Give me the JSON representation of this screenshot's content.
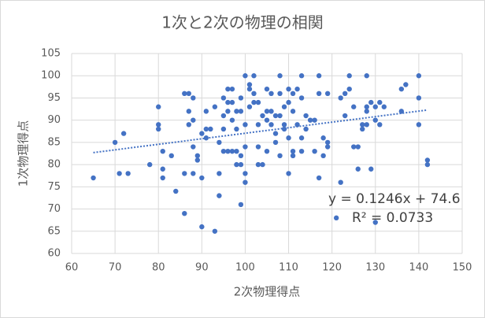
{
  "chart_data": {
    "type": "scatter",
    "title": "1次と2次の物理の相関",
    "x_label": "2次物理得点",
    "y_label": "1次物理得点",
    "color": "#4472c4",
    "xlim": [
      60,
      150
    ],
    "xticks": [
      60,
      70,
      80,
      90,
      100,
      110,
      120,
      130,
      140,
      150
    ],
    "ylim": [
      60,
      105
    ],
    "yticks": [
      60,
      65,
      70,
      75,
      80,
      85,
      90,
      95,
      100,
      105
    ],
    "grid": true,
    "x": [
      65,
      70,
      71,
      72,
      73,
      78,
      80,
      80,
      80,
      81,
      81,
      81,
      83,
      84,
      86,
      86,
      86,
      87,
      87,
      87,
      88,
      88,
      88,
      88,
      89,
      89,
      90,
      90,
      90,
      91,
      91,
      91,
      92,
      93,
      93,
      94,
      94,
      94,
      95,
      95,
      95,
      95,
      96,
      96,
      96,
      96,
      97,
      97,
      97,
      97,
      98,
      98,
      98,
      98,
      99,
      99,
      99,
      99,
      99,
      100,
      100,
      100,
      100,
      100,
      101,
      101,
      101,
      102,
      102,
      102,
      103,
      103,
      103,
      103,
      104,
      104,
      105,
      105,
      105,
      105,
      106,
      106,
      106,
      107,
      107,
      107,
      108,
      108,
      108,
      108,
      109,
      109,
      109,
      110,
      110,
      110,
      110,
      111,
      111,
      111,
      111,
      112,
      112,
      113,
      113,
      113,
      113,
      114,
      114,
      115,
      116,
      116,
      117,
      117,
      117,
      118,
      118,
      119,
      119,
      119,
      121,
      122,
      122,
      123,
      123,
      124,
      124,
      125,
      125,
      126,
      126,
      127,
      127,
      128,
      128,
      128,
      128,
      129,
      129,
      130,
      130,
      130,
      131,
      131,
      132,
      136,
      136,
      137,
      140,
      140,
      140,
      142,
      142
    ],
    "values": [
      77,
      85,
      78,
      87,
      78,
      80,
      93,
      89,
      88,
      83,
      79,
      77,
      82,
      74,
      96,
      78,
      69,
      96,
      89,
      92,
      95,
      90,
      84,
      78,
      82,
      81,
      87,
      77,
      66,
      92,
      88,
      86,
      88,
      93,
      65,
      73,
      78,
      85,
      95,
      91,
      88,
      83,
      97,
      94,
      92,
      83,
      97,
      94,
      90,
      83,
      92,
      88,
      83,
      80,
      95,
      92,
      82,
      80,
      71,
      100,
      89,
      84,
      78,
      76,
      98,
      97,
      93,
      100,
      96,
      94,
      94,
      89,
      84,
      80,
      91,
      80,
      97,
      92,
      90,
      83,
      96,
      92,
      89,
      87,
      85,
      91,
      100,
      96,
      91,
      82,
      89,
      88,
      93,
      97,
      94,
      86,
      78,
      96,
      92,
      83,
      82,
      97,
      89,
      95,
      100,
      86,
      83,
      91,
      88,
      90,
      90,
      83,
      100,
      96,
      77,
      86,
      82,
      96,
      85,
      84,
      68,
      95,
      76,
      96,
      91,
      97,
      100,
      93,
      84,
      79,
      84,
      89,
      88,
      100,
      93,
      92,
      89,
      94,
      79,
      93,
      90,
      67,
      94,
      89,
      93,
      97,
      92,
      98,
      100,
      95,
      89,
      81,
      80
    ],
    "trendline": {
      "slope": 0.1246,
      "intercept": 74.6,
      "label": "y = 0.1246x + 74.6",
      "r2_label": "R² = 0.0733"
    }
  }
}
